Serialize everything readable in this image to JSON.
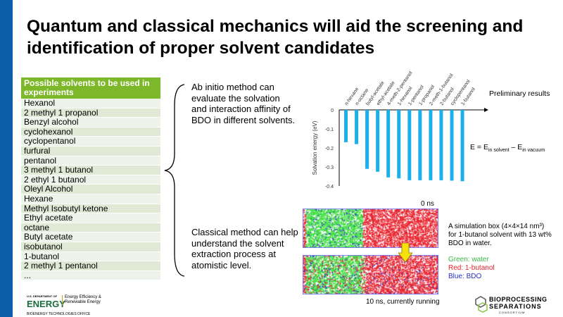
{
  "title": "Quantum and classical mechanics will aid the screening and identification of proper solvent candidates",
  "table": {
    "header": "Possible solvents to be used in experiments",
    "rows": [
      "Hexanol",
      "2 methyl 1 propanol",
      "Benzyl alcohol",
      "cyclohexanol",
      "cyclopentanol",
      "furfural",
      "pentanol",
      "3 methyl 1 butanol",
      "2 ethyl 1 butanol",
      "Oleyl Alcohol",
      "Hexane",
      "Methyl Isobutyl ketone",
      "Ethyl acetate",
      "octane",
      "Butyl acetate",
      "isobutanol",
      "1-butanol",
      "2 methyl 1 pentanol",
      "..."
    ]
  },
  "ab_initio_text": "Ab initio method can evaluate the solvation and interaction affinity of BDO in different solvents.",
  "classical_text": "Classical method can help understand the solvent extraction process at atomistic level.",
  "chart_note": "Preliminary results",
  "equation": {
    "lhs": "E = E",
    "sub1": "in solvent",
    "mid": " – E",
    "sub2": "in vacuum"
  },
  "chart_data": {
    "type": "bar",
    "categories": [
      "n-hexane",
      "n-octane",
      "butyl-acetate",
      "ethyl-acetate",
      "4-meth-2-pentanol",
      "1-hexanol",
      "1-pentanol",
      "1-propanol",
      "2-meth-1-butanol",
      "2-butanol",
      "cyclopentanol",
      "1-butanol"
    ],
    "values": [
      -0.17,
      -0.18,
      -0.31,
      -0.325,
      -0.355,
      -0.36,
      -0.37,
      -0.37,
      -0.37,
      -0.37,
      -0.372,
      -0.375
    ],
    "ylabel": "Solvation energy (eV)",
    "ylim": [
      -0.4,
      0
    ],
    "yticks": [
      "0",
      "-0.1",
      "-0.2",
      "-0.3",
      "-0.4"
    ],
    "color": "#1ab0ec"
  },
  "sim": {
    "top_label": "0 ns",
    "bottom_label": "10 ns, currently running",
    "desc": "A simulation box (4×4×14 nm³) for 1-butanol solvent with 13 wt% BDO in water.",
    "legend": [
      {
        "text": "Green: water",
        "color": "#3cb44b"
      },
      {
        "text": "Red: 1-butanol",
        "color": "#e8222a"
      },
      {
        "text": "Blue: BDO",
        "color": "#2430c8"
      }
    ]
  },
  "logos": {
    "doe_small": "U.S. DEPARTMENT OF",
    "doe": "ENERGY",
    "eere": "Energy Efficiency & Renewable Energy",
    "bto": "BIOENERGY TECHNOLOGIES OFFICE",
    "bsc1": "BIOPROCESSING",
    "bsc2": "SEPARATIONS",
    "bsc3": "CONSORTIUM"
  }
}
